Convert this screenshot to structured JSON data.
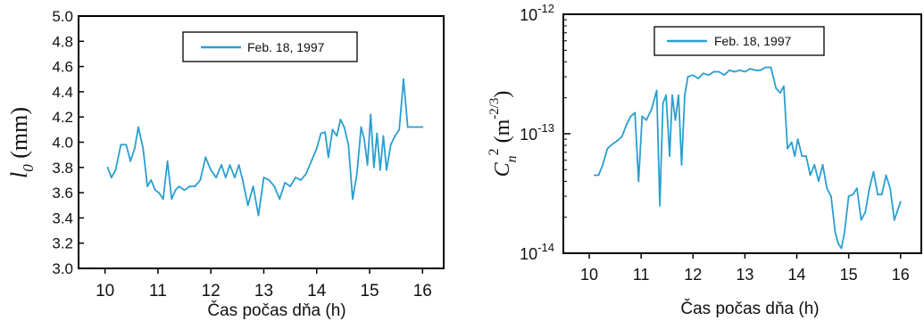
{
  "chart_data": [
    {
      "type": "line",
      "title": "",
      "xlabel": "Čas počas dňa (h)",
      "ylabel_symbol": "l",
      "ylabel_subscript": "0",
      "ylabel_unit": " (mm)",
      "xlim": [
        9.5,
        16.4
      ],
      "ylim": [
        3.0,
        5.0
      ],
      "x_ticks": [
        "10",
        "11",
        "12",
        "13",
        "14",
        "15",
        "16"
      ],
      "y_ticks": [
        "3.0",
        "3.2",
        "3.4",
        "3.6",
        "3.8",
        "4.0",
        "4.2",
        "4.4",
        "4.6",
        "4.8",
        "5.0"
      ],
      "legend": "top-center",
      "grid": false,
      "line_color": "#2a9fd0",
      "series": [
        {
          "name": "Feb. 18, 1997",
          "x": [
            10.05,
            10.12,
            10.2,
            10.3,
            10.4,
            10.48,
            10.56,
            10.63,
            10.72,
            10.8,
            10.87,
            10.95,
            11.02,
            11.1,
            11.18,
            11.26,
            11.33,
            11.4,
            11.5,
            11.6,
            11.7,
            11.8,
            11.9,
            12.0,
            12.1,
            12.2,
            12.28,
            12.36,
            12.45,
            12.53,
            12.6,
            12.7,
            12.8,
            12.9,
            13.0,
            13.1,
            13.2,
            13.3,
            13.4,
            13.5,
            13.6,
            13.7,
            13.8,
            13.9,
            14.0,
            14.08,
            14.16,
            14.22,
            14.3,
            14.38,
            14.45,
            14.52,
            14.6,
            14.68,
            14.76,
            14.84,
            14.9,
            14.96,
            15.02,
            15.08,
            15.14,
            15.2,
            15.26,
            15.32,
            15.4,
            15.48,
            15.56,
            15.64,
            15.72,
            15.8,
            15.88,
            16.0
          ],
          "y": [
            3.8,
            3.72,
            3.78,
            3.98,
            3.98,
            3.85,
            3.95,
            4.12,
            3.95,
            3.65,
            3.7,
            3.62,
            3.6,
            3.55,
            3.85,
            3.55,
            3.62,
            3.65,
            3.62,
            3.65,
            3.65,
            3.7,
            3.88,
            3.78,
            3.72,
            3.82,
            3.72,
            3.82,
            3.72,
            3.82,
            3.7,
            3.5,
            3.65,
            3.42,
            3.72,
            3.7,
            3.65,
            3.55,
            3.68,
            3.65,
            3.72,
            3.7,
            3.75,
            3.85,
            3.95,
            4.07,
            4.08,
            3.88,
            4.1,
            4.05,
            4.18,
            4.12,
            3.98,
            3.55,
            3.75,
            4.12,
            4.02,
            3.82,
            4.22,
            3.8,
            4.07,
            3.78,
            4.05,
            3.78,
            3.98,
            4.05,
            4.1,
            4.5,
            4.12,
            4.12,
            4.12,
            4.12
          ]
        }
      ]
    },
    {
      "type": "line",
      "title": "",
      "xlabel": "Čas počas dňa (h)",
      "ylabel_symbol": "C",
      "ylabel_subscript": "n",
      "ylabel_sup": "2",
      "ylabel_unit": " (m",
      "ylabel_unit_sup": "-2/3",
      "ylabel_close": ")",
      "yscale": "log",
      "xlim": [
        9.5,
        16.4
      ],
      "ylim": [
        1e-14,
        1e-12
      ],
      "x_ticks": [
        "10",
        "11",
        "12",
        "13",
        "14",
        "15",
        "16"
      ],
      "y_ticks": [
        {
          "base": "10",
          "exp": "-14",
          "value": 1e-14
        },
        {
          "base": "10",
          "exp": "-13",
          "value": 1e-13
        },
        {
          "base": "10",
          "exp": "-12",
          "value": 1e-12
        }
      ],
      "legend": "top-left",
      "grid": false,
      "line_color": "#2a9fd0",
      "series": [
        {
          "name": "Feb. 18, 1997",
          "x": [
            10.1,
            10.18,
            10.26,
            10.35,
            10.45,
            10.55,
            10.63,
            10.72,
            10.8,
            10.88,
            10.95,
            11.02,
            11.1,
            11.2,
            11.3,
            11.36,
            11.42,
            11.48,
            11.55,
            11.6,
            11.66,
            11.72,
            11.78,
            11.84,
            11.9,
            12.0,
            12.1,
            12.2,
            12.3,
            12.4,
            12.5,
            12.6,
            12.7,
            12.8,
            12.9,
            13.0,
            13.1,
            13.2,
            13.3,
            13.4,
            13.5,
            13.6,
            13.68,
            13.75,
            13.82,
            13.9,
            13.96,
            14.02,
            14.1,
            14.18,
            14.26,
            14.34,
            14.42,
            14.5,
            14.58,
            14.66,
            14.74,
            14.8,
            14.86,
            14.92,
            15.0,
            15.08,
            15.16,
            15.24,
            15.32,
            15.4,
            15.48,
            15.56,
            15.64,
            15.72,
            15.8,
            15.88,
            16.0
          ],
          "y": [
            4.5e-14,
            4.5e-14,
            5.5e-14,
            7.5e-14,
            8.2e-14,
            8.8e-14,
            9.5e-14,
            1.2e-13,
            1.4e-13,
            1.5e-13,
            4e-14,
            1.4e-13,
            1.3e-13,
            1.6e-13,
            2.3e-13,
            2.5e-14,
            1.8e-13,
            2.1e-13,
            6.5e-14,
            2.1e-13,
            1.3e-13,
            2.1e-13,
            5.5e-14,
            2.1e-13,
            3e-13,
            3.1e-13,
            2.9e-13,
            3.2e-13,
            3.1e-13,
            3.3e-13,
            3.3e-13,
            3.1e-13,
            3.4e-13,
            3.3e-13,
            3.4e-13,
            3.3e-13,
            3.5e-13,
            3.4e-13,
            3.4e-13,
            3.6e-13,
            3.6e-13,
            2.4e-13,
            2.2e-13,
            2.5e-13,
            7.5e-14,
            8.5e-14,
            6.5e-14,
            9e-14,
            6.5e-14,
            6.5e-14,
            4.5e-14,
            5.5e-14,
            4e-14,
            5.5e-14,
            3.5e-14,
            3e-14,
            1.5e-14,
            1.2e-14,
            1.1e-14,
            1.5e-14,
            3e-14,
            3.1e-14,
            3.5e-14,
            1.9e-14,
            2.2e-14,
            3.5e-14,
            4.8e-14,
            3.1e-14,
            3.1e-14,
            4.5e-14,
            3.5e-14,
            1.9e-14,
            2.7e-14
          ]
        }
      ]
    }
  ]
}
